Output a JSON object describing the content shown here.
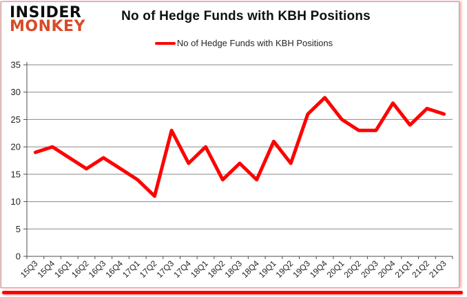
{
  "logo": {
    "line1": "INSIDER",
    "line2": "MONKEY",
    "accent_color": "#d94b28"
  },
  "header": {
    "title": "No of Hedge Funds with KBH Positions"
  },
  "legend": {
    "label": "No of Hedge Funds with KBH Positions",
    "line_color": "#ff0000"
  },
  "chart_data": {
    "type": "line",
    "title": "No of Hedge Funds with KBH Positions",
    "categories": [
      "15Q3",
      "15Q4",
      "16Q1",
      "16Q2",
      "16Q3",
      "16Q4",
      "17Q1",
      "17Q2",
      "17Q3",
      "17Q4",
      "18Q1",
      "18Q2",
      "18Q3",
      "18Q4",
      "19Q1",
      "19Q2",
      "19Q3",
      "19Q4",
      "20Q1",
      "20Q2",
      "20Q3",
      "20Q4",
      "21Q1",
      "21Q2",
      "21Q3"
    ],
    "series": [
      {
        "name": "No of Hedge Funds with KBH Positions",
        "color": "#ff0000",
        "values": [
          19,
          20,
          18,
          16,
          18,
          16,
          14,
          11,
          23,
          17,
          20,
          14,
          17,
          14,
          21,
          17,
          26,
          29,
          25,
          23,
          23,
          28,
          24,
          27,
          26
        ]
      }
    ],
    "xlabel": "",
    "ylabel": "",
    "ylim": [
      0,
      35
    ],
    "y_ticks": [
      0,
      5,
      10,
      15,
      20,
      25,
      30,
      35
    ],
    "grid": true,
    "legend_position": "top"
  }
}
